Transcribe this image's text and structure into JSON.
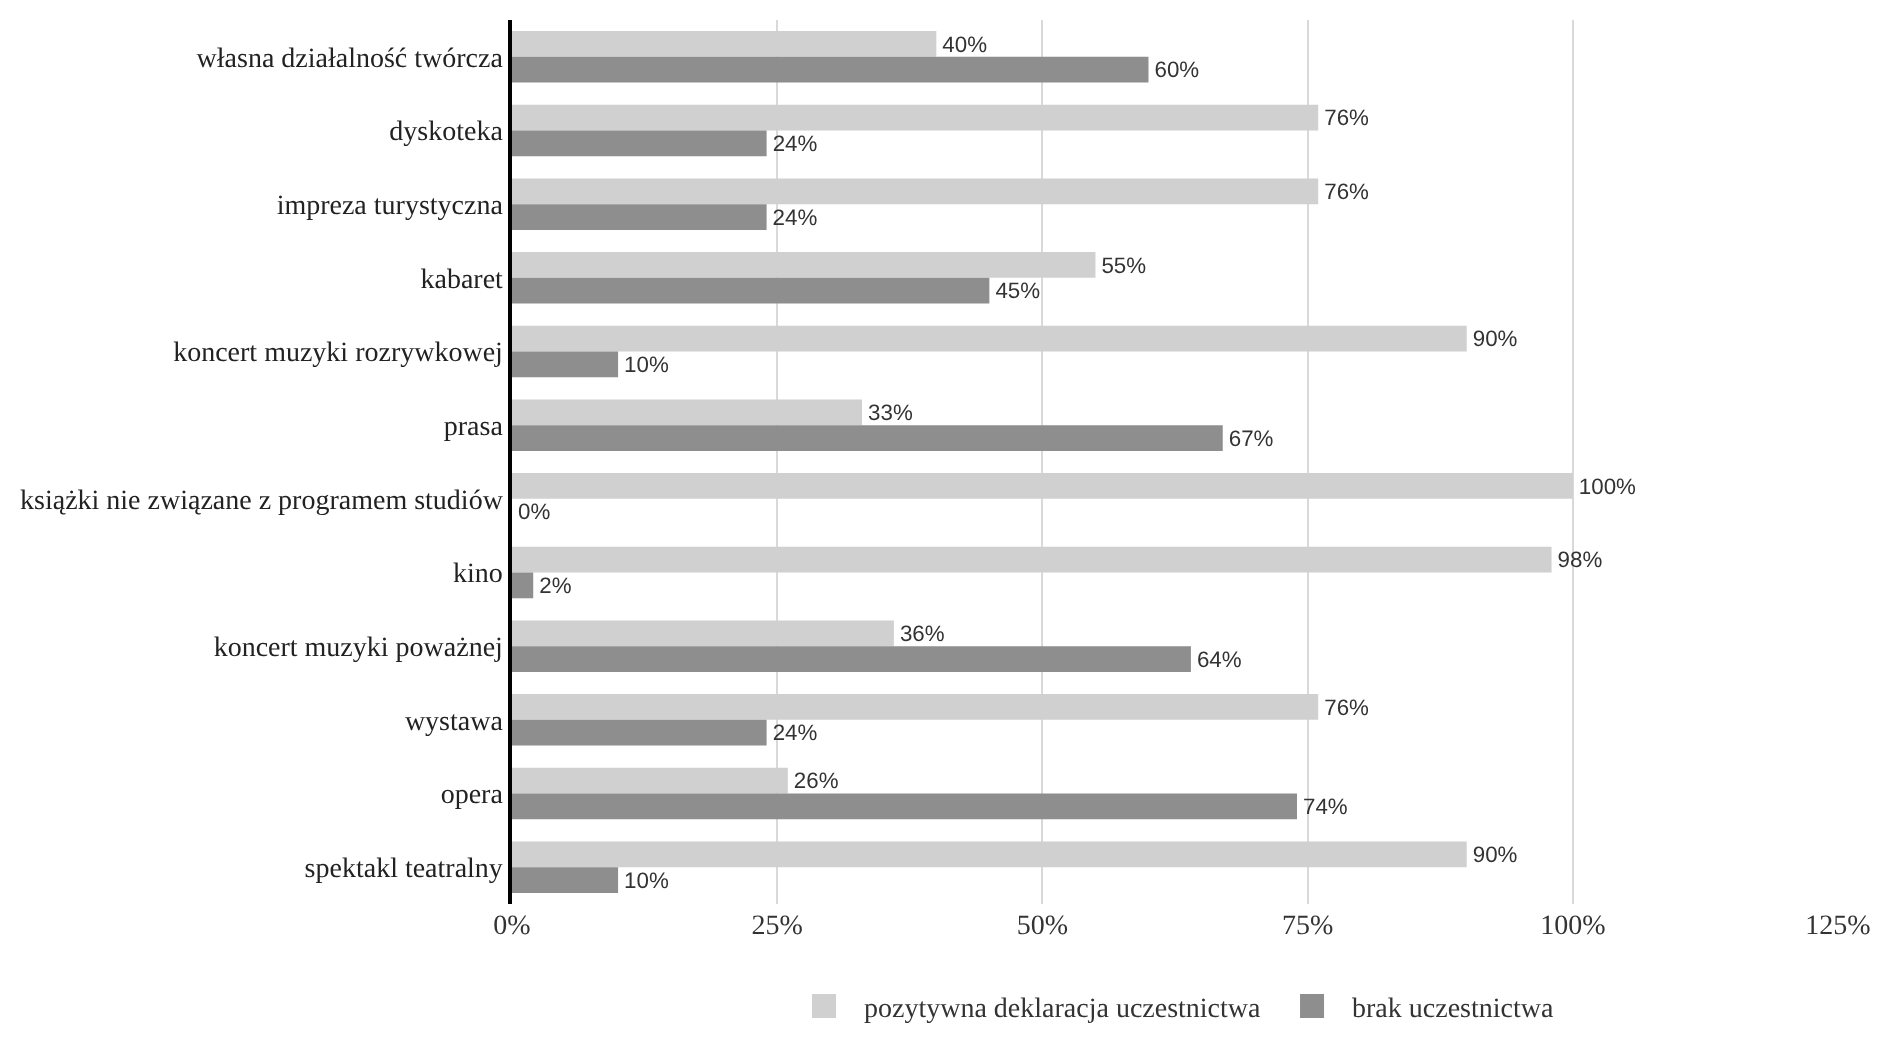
{
  "chart_data": {
    "type": "bar",
    "orientation": "horizontal",
    "categories": [
      "własna działalność twórcza",
      "dyskoteka",
      "impreza turystyczna",
      "kabaret",
      "koncert muzyki rozrywkowej",
      "prasa",
      "książki nie związane z programem studiów",
      "kino",
      "koncert muzyki poważnej",
      "wystawa",
      "opera",
      "spektakl teatralny"
    ],
    "series": [
      {
        "name": "pozytywna deklaracja uczestnictwa",
        "color": "#d0d0d0",
        "values": [
          40,
          76,
          76,
          55,
          90,
          33,
          100,
          98,
          36,
          76,
          26,
          90
        ],
        "value_labels": [
          "40%",
          "76%",
          "76%",
          "55%",
          "90%",
          "33%",
          "100%",
          "98%",
          "36%",
          "76%",
          "26%",
          "90%"
        ]
      },
      {
        "name": "brak uczestnictwa",
        "color": "#8e8e8e",
        "values": [
          60,
          24,
          24,
          45,
          10,
          67,
          0,
          2,
          64,
          24,
          74,
          10
        ],
        "value_labels": [
          "60%",
          "24%",
          "24%",
          "45%",
          "10%",
          "67%",
          "0%",
          "2%",
          "64%",
          "24%",
          "74%",
          "10%"
        ]
      }
    ],
    "xlim": [
      0,
      125
    ],
    "xticks": [
      {
        "value": 0,
        "label": "0%"
      },
      {
        "value": 25,
        "label": "25%"
      },
      {
        "value": 50,
        "label": "50%"
      },
      {
        "value": 75,
        "label": "75%"
      },
      {
        "value": 100,
        "label": "100%"
      },
      {
        "value": 125,
        "label": "125%"
      }
    ],
    "grid": "x",
    "legend": "bottom"
  }
}
